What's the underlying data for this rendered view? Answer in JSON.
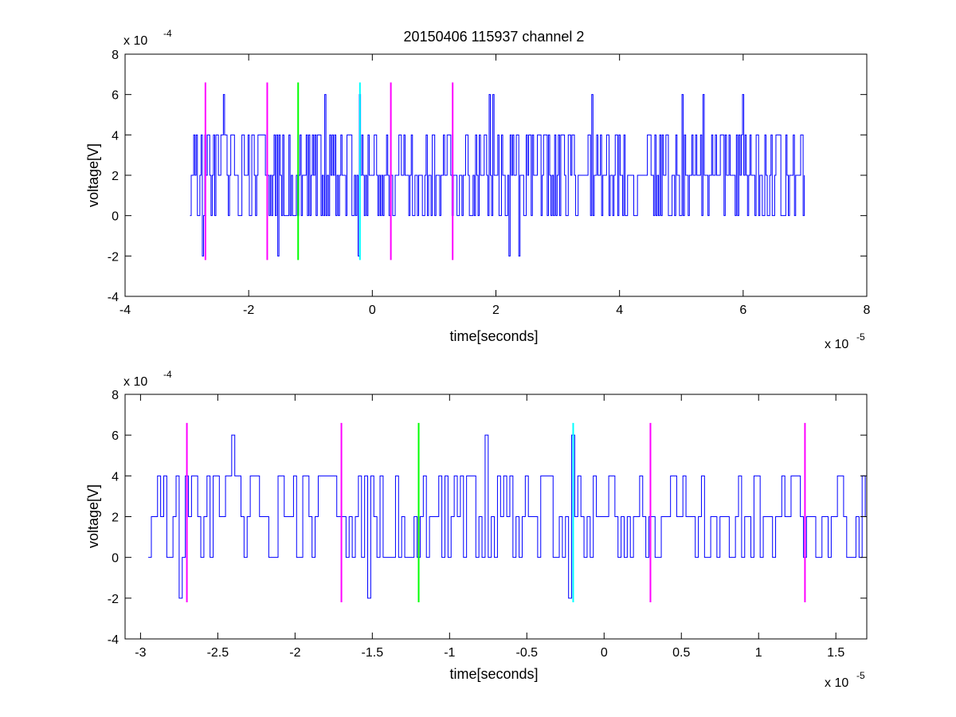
{
  "figure": {
    "title": "20150406 115937 channel 2"
  },
  "colors": {
    "signal": "#0000ff",
    "marker_magenta": "#ff00ff",
    "marker_green": "#00ff00",
    "marker_cyan": "#00ffff",
    "axes": "#000000",
    "background": "#ffffff"
  },
  "chart_data": [
    {
      "type": "line",
      "title": "20150406 115937 channel 2",
      "xlabel": "time[seconds]",
      "ylabel": "voltage[V]",
      "x_multiplier": "x 10",
      "x_exponent": "-5",
      "y_multiplier": "x 10",
      "y_exponent": "-4",
      "xlim": [
        -4,
        8
      ],
      "ylim": [
        -4,
        8
      ],
      "x_ticks": [
        -4,
        -2,
        0,
        2,
        4,
        6,
        8
      ],
      "y_ticks": [
        -4,
        -2,
        0,
        2,
        4,
        6,
        8
      ],
      "x_tick_labels": [
        "-4",
        "-2",
        "0",
        "2",
        "4",
        "6",
        "8"
      ],
      "y_tick_labels": [
        "-4",
        "-2",
        "0",
        "2",
        "4",
        "6",
        "8"
      ],
      "grid": false,
      "series": [
        {
          "color": "#0000ff",
          "x_range": [
            -2.95,
            7.0
          ],
          "sample_step": 0.02,
          "values_note": "dense quantized trace alternating between 0, 2 and 4 (occasional 6 and -2)"
        }
      ],
      "markers": [
        {
          "x": -2.7,
          "color": "#ff00ff",
          "y_range": [
            -2.2,
            6.6
          ]
        },
        {
          "x": -1.7,
          "color": "#ff00ff",
          "y_range": [
            -2.2,
            6.6
          ]
        },
        {
          "x": -1.2,
          "color": "#00ff00",
          "y_range": [
            -2.2,
            6.6
          ]
        },
        {
          "x": -0.2,
          "color": "#00ffff",
          "y_range": [
            -2.2,
            6.6
          ]
        },
        {
          "x": 0.3,
          "color": "#ff00ff",
          "y_range": [
            -2.2,
            6.6
          ]
        },
        {
          "x": 1.3,
          "color": "#ff00ff",
          "y_range": [
            -2.2,
            6.6
          ]
        }
      ]
    },
    {
      "type": "line",
      "title": "",
      "xlabel": "time[seconds]",
      "ylabel": "voltage[V]",
      "x_multiplier": "x 10",
      "x_exponent": "-5",
      "y_multiplier": "x 10",
      "y_exponent": "-4",
      "xlim": [
        -3.1,
        1.7
      ],
      "ylim": [
        -4,
        8
      ],
      "x_ticks": [
        -3,
        -2.5,
        -2,
        -1.5,
        -1,
        -0.5,
        0,
        0.5,
        1,
        1.5
      ],
      "y_ticks": [
        -4,
        -2,
        0,
        2,
        4,
        6,
        8
      ],
      "x_tick_labels": [
        "-3",
        "-2.5",
        "-2",
        "-1.5",
        "-1",
        "-0.5",
        "0",
        "0.5",
        "1",
        "1.5"
      ],
      "y_tick_labels": [
        "-4",
        "-2",
        "0",
        "2",
        "4",
        "6",
        "8"
      ],
      "grid": false,
      "series": [
        {
          "color": "#0000ff",
          "x_range": [
            -2.95,
            1.7
          ],
          "sample_step": 0.02,
          "values_note": "zoomed view of the same quantized trace"
        }
      ],
      "markers": [
        {
          "x": -2.7,
          "color": "#ff00ff",
          "y_range": [
            -2.2,
            6.6
          ]
        },
        {
          "x": -1.7,
          "color": "#ff00ff",
          "y_range": [
            -2.2,
            6.6
          ]
        },
        {
          "x": -1.2,
          "color": "#00ff00",
          "y_range": [
            -2.2,
            6.6
          ]
        },
        {
          "x": -0.2,
          "color": "#00ffff",
          "y_range": [
            -2.2,
            6.6
          ]
        },
        {
          "x": 0.3,
          "color": "#ff00ff",
          "y_range": [
            -2.2,
            6.6
          ]
        },
        {
          "x": 1.3,
          "color": "#ff00ff",
          "y_range": [
            -2.2,
            6.6
          ]
        }
      ]
    }
  ]
}
